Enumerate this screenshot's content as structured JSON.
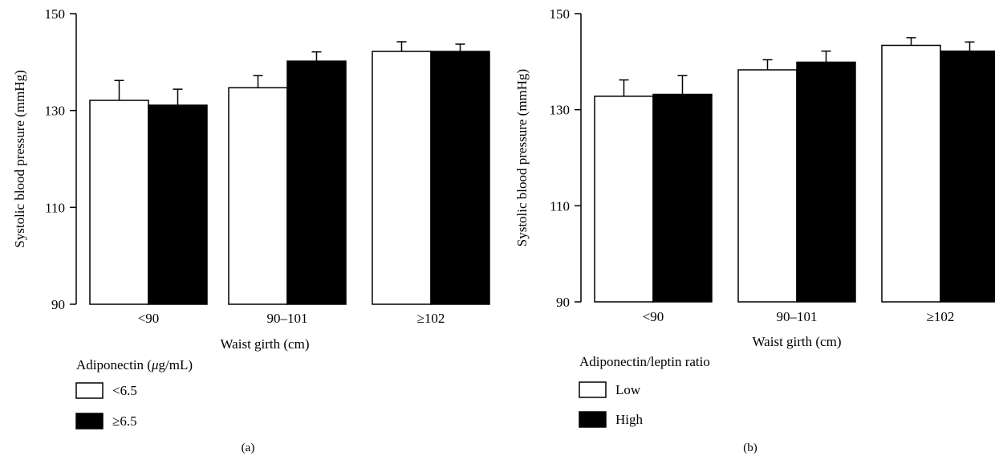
{
  "chart_data": [
    {
      "panel_label": "(a)",
      "type": "bar",
      "ylabel": "Systolic blood pressure (mmHg)",
      "xlabel": "Waist girth (cm)",
      "ylim": [
        90,
        150
      ],
      "yticks": [
        90,
        110,
        130,
        150
      ],
      "categories": [
        "<90",
        "90–101",
        "≥102"
      ],
      "legend_title": "Adiponectin (μg/mL)",
      "legend_position": "bottom-left",
      "series": [
        {
          "name": "<6.5",
          "fill": "#ffffff",
          "values": [
            132.1,
            134.7,
            142.2
          ],
          "errors": [
            4.1,
            2.5,
            2.0
          ]
        },
        {
          "name": "≥6.5",
          "fill": "#000000",
          "values": [
            131.1,
            140.2,
            142.2
          ],
          "errors": [
            3.3,
            1.9,
            1.5
          ]
        }
      ]
    },
    {
      "panel_label": "(b)",
      "type": "bar",
      "ylabel": "Systolic blood pressure (mmHg)",
      "xlabel": "Waist girth (cm)",
      "ylim": [
        90,
        150
      ],
      "yticks": [
        90,
        110,
        130,
        150
      ],
      "categories": [
        "<90",
        "90–101",
        "≥102"
      ],
      "legend_title": "Adiponectin/leptin ratio",
      "legend_position": "bottom-left",
      "series": [
        {
          "name": "Low",
          "fill": "#ffffff",
          "values": [
            132.8,
            138.3,
            143.4
          ],
          "errors": [
            3.4,
            2.1,
            1.6
          ]
        },
        {
          "name": "High",
          "fill": "#000000",
          "values": [
            133.2,
            139.9,
            142.2
          ],
          "errors": [
            3.9,
            2.3,
            1.9
          ]
        }
      ]
    }
  ]
}
